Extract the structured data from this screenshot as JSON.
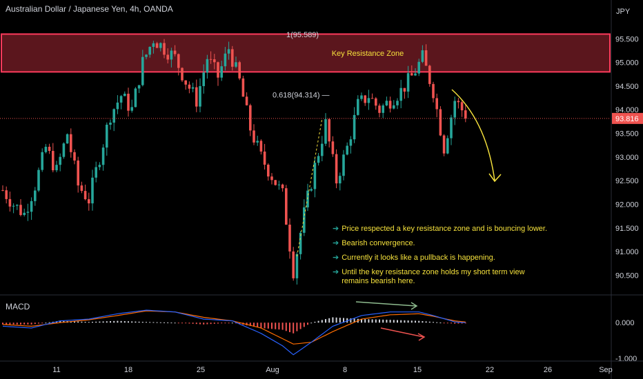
{
  "header": {
    "title": "Australian Dollar / Japanese Yen, 4h, OANDA"
  },
  "currency_label": "JPY",
  "last_price_label": "93.816",
  "colors": {
    "background": "#000000",
    "bull": "#26a69a",
    "bear": "#ef5350",
    "zone_fill": "#6b1a22",
    "zone_border": "#ff3b5c",
    "annotation": "#f5e13c",
    "macd_line": "#2962ff",
    "signal_line": "#ff6d00",
    "axis_text": "#d1d4dc"
  },
  "resistance_zone": {
    "label": "Key Resistance Zone",
    "top_price": 95.6,
    "bottom_price": 94.8
  },
  "fib_levels": [
    {
      "label": "1(95.589)",
      "price": 95.589
    },
    {
      "label": "0.618(94.314)",
      "price": 94.314
    }
  ],
  "annotations": [
    "Price respected a key resistance zone and is bouncing lower.",
    "Bearish convergence.",
    "Currently it looks like a pullback is happening.",
    "Until the key resistance zone holds my short term view remains bearish here."
  ],
  "macd_label": "MACD",
  "chart_data": {
    "type": "candlestick",
    "title": "Australian Dollar / Japanese Yen, 4h, OANDA",
    "y_unit": "JPY",
    "ylim": [
      90.2,
      96.0
    ],
    "y_ticks": [
      "95.500",
      "95.000",
      "94.500",
      "94.000",
      "93.500",
      "93.000",
      "92.500",
      "92.000",
      "91.500",
      "91.000",
      "90.500"
    ],
    "x_ticks": [
      "11",
      "18",
      "25",
      "Aug",
      "8",
      "15",
      "22",
      "26",
      "Sep"
    ],
    "last_price": 93.816,
    "grid": false,
    "series": [
      {
        "name": "AUD/JPY",
        "close_path": [
          [
            0,
            92.3
          ],
          [
            3,
            92.0
          ],
          [
            6,
            91.8
          ],
          [
            9,
            92.4
          ],
          [
            12,
            93.2
          ],
          [
            15,
            92.7
          ],
          [
            18,
            93.5
          ],
          [
            21,
            92.4
          ],
          [
            24,
            92.1
          ],
          [
            27,
            93.0
          ],
          [
            30,
            93.9
          ],
          [
            33,
            94.3
          ],
          [
            36,
            94.0
          ],
          [
            39,
            95.0
          ],
          [
            42,
            95.5
          ],
          [
            45,
            95.3
          ],
          [
            48,
            95.1
          ],
          [
            51,
            94.6
          ],
          [
            54,
            94.2
          ],
          [
            57,
            95.1
          ],
          [
            60,
            94.7
          ],
          [
            63,
            95.3
          ],
          [
            66,
            94.6
          ],
          [
            69,
            93.6
          ],
          [
            72,
            93.0
          ],
          [
            75,
            92.6
          ],
          [
            78,
            92.2
          ],
          [
            81,
            90.6
          ],
          [
            84,
            91.8
          ],
          [
            87,
            92.8
          ],
          [
            90,
            93.7
          ],
          [
            93,
            92.5
          ],
          [
            96,
            93.2
          ],
          [
            99,
            94.1
          ],
          [
            102,
            94.3
          ],
          [
            105,
            94.0
          ],
          [
            108,
            94.2
          ],
          [
            111,
            94.4
          ],
          [
            114,
            94.7
          ],
          [
            117,
            95.1
          ],
          [
            120,
            94.4
          ],
          [
            123,
            93.2
          ],
          [
            126,
            94.2
          ],
          [
            129,
            93.9
          ]
        ]
      }
    ],
    "macd": {
      "ylim": [
        -1.0,
        0.7
      ],
      "y_ticks": [
        "0.000",
        "-1.000"
      ],
      "macd_path": [
        [
          0,
          -0.1
        ],
        [
          8,
          -0.15
        ],
        [
          16,
          0.05
        ],
        [
          24,
          0.1
        ],
        [
          32,
          0.25
        ],
        [
          40,
          0.35
        ],
        [
          48,
          0.3
        ],
        [
          56,
          0.1
        ],
        [
          64,
          0.05
        ],
        [
          72,
          -0.3
        ],
        [
          78,
          -0.65
        ],
        [
          81,
          -0.9
        ],
        [
          86,
          -0.55
        ],
        [
          92,
          -0.1
        ],
        [
          100,
          0.2
        ],
        [
          108,
          0.3
        ],
        [
          116,
          0.3
        ],
        [
          120,
          0.2
        ],
        [
          126,
          0.02
        ],
        [
          129,
          0.0
        ]
      ],
      "signal_path": [
        [
          0,
          -0.05
        ],
        [
          8,
          -0.1
        ],
        [
          16,
          0.0
        ],
        [
          24,
          0.08
        ],
        [
          32,
          0.2
        ],
        [
          40,
          0.33
        ],
        [
          48,
          0.3
        ],
        [
          56,
          0.15
        ],
        [
          64,
          0.05
        ],
        [
          72,
          -0.15
        ],
        [
          78,
          -0.45
        ],
        [
          81,
          -0.6
        ],
        [
          86,
          -0.55
        ],
        [
          92,
          -0.25
        ],
        [
          100,
          0.1
        ],
        [
          108,
          0.22
        ],
        [
          116,
          0.25
        ],
        [
          120,
          0.18
        ],
        [
          126,
          0.05
        ],
        [
          129,
          0.02
        ]
      ]
    }
  }
}
